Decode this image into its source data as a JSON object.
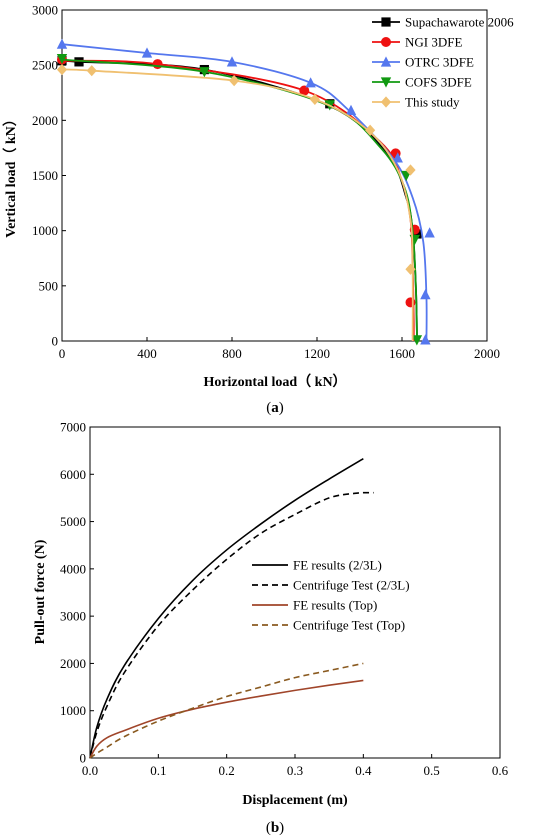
{
  "chart_data": [
    {
      "type": "line",
      "caption_letter": "a",
      "xlabel": "Horizontal load（ kN）",
      "ylabel": "Vertical load（ kN）",
      "xlim": [
        0,
        2000
      ],
      "ylim": [
        0,
        3000
      ],
      "xticks": [
        "0",
        "400",
        "800",
        "1200",
        "1600",
        "2000"
      ],
      "yticks": [
        "0",
        "500",
        "1000",
        "1500",
        "2000",
        "2500",
        "3000"
      ],
      "legend_position": "top-right",
      "series": [
        {
          "name": "Supachawarote 2006",
          "color": "#000000",
          "marker": "square",
          "x": [
            0,
            90,
            670,
            1260,
            1530,
            1620,
            1650,
            1665,
            1670,
            1670
          ],
          "y": [
            2540,
            2530,
            2460,
            2130,
            1700,
            1300,
            1000,
            500,
            100,
            0
          ],
          "markers": [
            [
              0,
              2540
            ],
            [
              80,
              2530
            ],
            [
              670,
              2460
            ],
            [
              1260,
              2150
            ],
            [
              1670,
              970
            ]
          ]
        },
        {
          "name": "NGI 3DFE",
          "color": "#ee1111",
          "marker": "circle",
          "x": [
            0,
            450,
            1140,
            1500,
            1600,
            1640,
            1650,
            1655,
            1655
          ],
          "y": [
            2540,
            2510,
            2270,
            1800,
            1450,
            1100,
            700,
            200,
            0
          ],
          "markers": [
            [
              0,
              2550
            ],
            [
              450,
              2510
            ],
            [
              1140,
              2270
            ],
            [
              1570,
              1700
            ],
            [
              1660,
              1010
            ],
            [
              1640,
              350
            ]
          ]
        },
        {
          "name": "OTRC 3DFE",
          "color": "#5577ee",
          "marker": "triangle-up",
          "x": [
            0,
            400,
            800,
            1170,
            1350,
            1560,
            1650,
            1700,
            1715,
            1715
          ],
          "y": [
            2690,
            2610,
            2530,
            2340,
            2090,
            1650,
            1300,
            900,
            400,
            0
          ],
          "markers": [
            [
              0,
              2690
            ],
            [
              400,
              2610
            ],
            [
              800,
              2530
            ],
            [
              1170,
              2340
            ],
            [
              1360,
              2090
            ],
            [
              1580,
              1660
            ],
            [
              1730,
              980
            ],
            [
              1710,
              420
            ],
            [
              1710,
              10
            ]
          ]
        },
        {
          "name": "COFS 3DFE",
          "color": "#119911",
          "marker": "triangle-down",
          "x": [
            0,
            670,
            1260,
            1500,
            1610,
            1650,
            1665,
            1670,
            1670
          ],
          "y": [
            2550,
            2440,
            2130,
            1750,
            1400,
            1000,
            500,
            100,
            0
          ],
          "markers": [
            [
              0,
              2560
            ],
            [
              670,
              2440
            ],
            [
              1260,
              2140
            ],
            [
              1620,
              1500
            ],
            [
              1660,
              920
            ],
            [
              1670,
              10
            ]
          ]
        },
        {
          "name": "This study",
          "color": "#f0c070",
          "marker": "diamond",
          "x": [
            0,
            140,
            810,
            1190,
            1440,
            1580,
            1640,
            1650,
            1650
          ],
          "y": [
            2460,
            2450,
            2360,
            2190,
            1910,
            1550,
            1100,
            650,
            0
          ],
          "markers": [
            [
              0,
              2460
            ],
            [
              140,
              2450
            ],
            [
              810,
              2360
            ],
            [
              1190,
              2190
            ],
            [
              1450,
              1910
            ],
            [
              1640,
              1550
            ],
            [
              1640,
              650
            ]
          ]
        }
      ]
    },
    {
      "type": "line",
      "caption_letter": "b",
      "xlabel": "Displacement (m)",
      "ylabel": "Pull-out force (N)",
      "xlim": [
        0.0,
        0.6
      ],
      "ylim": [
        0,
        7000
      ],
      "xticks": [
        "0.0",
        "0.1",
        "0.2",
        "0.3",
        "0.4",
        "0.5",
        "0.6"
      ],
      "yticks": [
        "0",
        "1000",
        "2000",
        "3000",
        "4000",
        "5000",
        "6000",
        "7000"
      ],
      "legend_position": "center-right",
      "series": [
        {
          "name": "FE results (2/3L)",
          "color": "#000000",
          "dash": "solid",
          "x": [
            0,
            0.01,
            0.025,
            0.05,
            0.1,
            0.15,
            0.2,
            0.25,
            0.3,
            0.35,
            0.4
          ],
          "y": [
            0,
            650,
            1250,
            1950,
            2950,
            3750,
            4400,
            4950,
            5450,
            5900,
            6330
          ]
        },
        {
          "name": "Centrifuge Test (2/3L)",
          "color": "#000000",
          "dash": "dashed",
          "x": [
            0,
            0.01,
            0.025,
            0.05,
            0.1,
            0.15,
            0.2,
            0.25,
            0.3,
            0.35,
            0.39,
            0.415
          ],
          "y": [
            0,
            550,
            1100,
            1800,
            2800,
            3550,
            4200,
            4750,
            5150,
            5500,
            5600,
            5610
          ]
        },
        {
          "name": "FE results (Top)",
          "color": "#a0452a",
          "dash": "solid",
          "x": [
            0,
            0.01,
            0.025,
            0.05,
            0.1,
            0.15,
            0.2,
            0.25,
            0.3,
            0.35,
            0.4
          ],
          "y": [
            0,
            250,
            430,
            580,
            840,
            1030,
            1180,
            1310,
            1430,
            1540,
            1640
          ]
        },
        {
          "name": "Centrifuge Test (Top)",
          "color": "#8a5a20",
          "dash": "dashed",
          "x": [
            0,
            0.01,
            0.025,
            0.05,
            0.1,
            0.15,
            0.2,
            0.25,
            0.3,
            0.35,
            0.4
          ],
          "y": [
            0,
            100,
            230,
            450,
            780,
            1050,
            1300,
            1500,
            1700,
            1850,
            2000
          ]
        }
      ]
    }
  ]
}
